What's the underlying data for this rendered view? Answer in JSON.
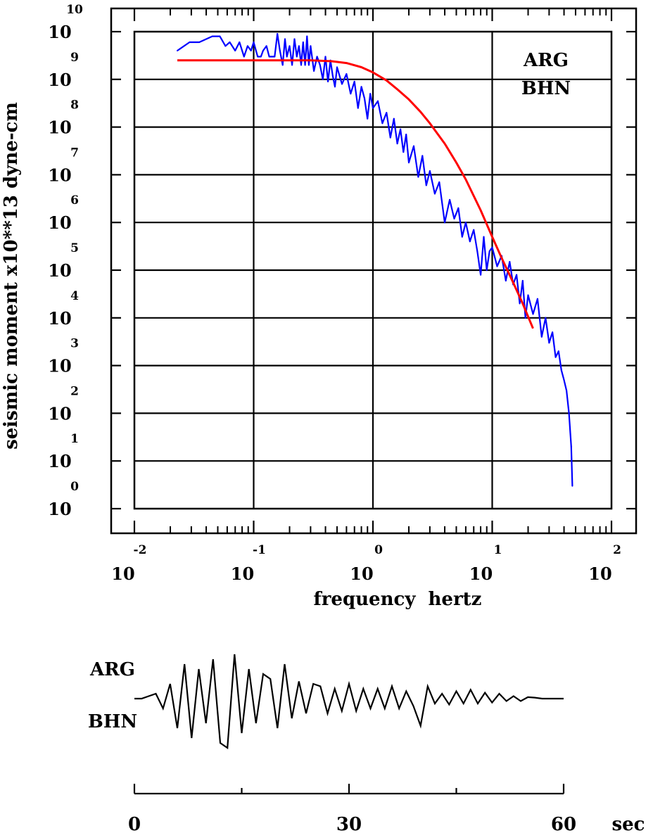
{
  "chart_data": [
    {
      "type": "line",
      "ylabel": "seismic moment x10**13 dyne-cm",
      "xlabel": "frequency  hertz",
      "xscale": "log",
      "yscale": "log",
      "xlim": [
        0.01,
        100
      ],
      "ylim": [
        1,
        10000000000
      ],
      "grid": true,
      "annotations": [
        "ARG",
        "BHN"
      ],
      "x_ticks": [
        {
          "base": "10",
          "exp": "-2"
        },
        {
          "base": "10",
          "exp": "-1"
        },
        {
          "base": "10",
          "exp": "0"
        },
        {
          "base": "10",
          "exp": "1"
        },
        {
          "base": "10",
          "exp": "2"
        }
      ],
      "y_ticks": [
        {
          "base": "10",
          "exp": "0"
        },
        {
          "base": "10",
          "exp": "1"
        },
        {
          "base": "10",
          "exp": "2"
        },
        {
          "base": "10",
          "exp": "3"
        },
        {
          "base": "10",
          "exp": "4"
        },
        {
          "base": "10",
          "exp": "5"
        },
        {
          "base": "10",
          "exp": "6"
        },
        {
          "base": "10",
          "exp": "7"
        },
        {
          "base": "10",
          "exp": "8"
        },
        {
          "base": "10",
          "exp": "9"
        },
        {
          "base": "10",
          "exp": "10"
        }
      ],
      "series": [
        {
          "color": "#0000ff",
          "style": "spectrum",
          "x": [
            0.0229,
            0.029,
            0.035,
            0.045,
            0.052,
            0.058,
            0.063,
            0.07,
            0.076,
            0.083,
            0.089,
            0.095,
            0.1,
            0.108,
            0.115,
            0.12,
            0.128,
            0.135,
            0.142,
            0.15,
            0.158,
            0.166,
            0.175,
            0.183,
            0.19,
            0.2,
            0.21,
            0.22,
            0.23,
            0.24,
            0.25,
            0.26,
            0.27,
            0.28,
            0.29,
            0.3,
            0.32,
            0.34,
            0.36,
            0.38,
            0.4,
            0.42,
            0.44,
            0.46,
            0.48,
            0.5,
            0.55,
            0.6,
            0.65,
            0.7,
            0.75,
            0.8,
            0.85,
            0.9,
            0.95,
            1.0,
            1.1,
            1.2,
            1.3,
            1.4,
            1.5,
            1.6,
            1.7,
            1.8,
            1.9,
            2.0,
            2.2,
            2.4,
            2.6,
            2.8,
            3.0,
            3.3,
            3.6,
            4.0,
            4.4,
            4.8,
            5.2,
            5.6,
            6.0,
            6.5,
            7.0,
            7.5,
            8.0,
            8.5,
            9.0,
            9.5,
            10.0,
            11.0,
            12.0,
            13.0,
            14.0,
            15.0,
            16.0,
            17.0,
            18.0,
            19.0,
            20.0,
            22.0,
            24.0,
            26.0,
            28.0,
            30.0,
            32.0,
            34.0,
            36.0,
            38.0,
            40.0,
            42.0,
            44.0,
            46.0,
            47.0
          ],
          "y": [
            4000000000,
            6000000000,
            6000000000,
            8000000000,
            8000000000,
            5000000000,
            6000000000,
            4000000000,
            6000000000,
            3000000000,
            5000000000,
            4000000000,
            6000000000,
            3000000000,
            3000000000,
            4000000000,
            5000000000,
            3000000000,
            3000000000,
            3000000000,
            9000000000,
            4000000000,
            2000000000,
            7000000000,
            3000000000,
            5000000000,
            2000000000,
            7000000000,
            3000000000,
            5000000000,
            2000000000,
            6000000000,
            2000000000,
            8000000000,
            2000000000,
            5000000000,
            1500000000,
            3000000000,
            2000000000,
            1000000000,
            3000000000,
            900000000,
            2500000000,
            1200000000,
            700000000,
            1800000000,
            800000000,
            1300000000,
            500000000,
            900000000,
            250000000,
            700000000,
            400000000,
            150000000,
            500000000,
            250000000,
            350000000,
            120000000,
            200000000,
            60000000,
            150000000,
            45000000,
            90000000,
            30000000,
            70000000,
            18000000,
            40000000,
            9000000,
            25000000,
            6000000,
            12000000,
            4000000,
            7000000,
            1000000,
            3000000,
            1200000,
            2000000,
            500000,
            1000000,
            400000,
            700000,
            250000,
            80000,
            500000,
            100000,
            250000,
            300000,
            120000,
            200000,
            60000,
            150000,
            50000,
            80000,
            20000,
            60000,
            10000,
            30000,
            12000,
            25000,
            4000,
            10000,
            3000,
            5000,
            1500,
            2000,
            800,
            500,
            300,
            100,
            20,
            3
          ]
        },
        {
          "color": "#ff0000",
          "style": "model",
          "x": [
            0.0229,
            0.03,
            0.05,
            0.08,
            0.12,
            0.2,
            0.3,
            0.45,
            0.6,
            0.8,
            1.0,
            1.3,
            1.6,
            2.0,
            2.5,
            3.0,
            4.0,
            5.0,
            6.0,
            8.0,
            10.0,
            12.0,
            15.0,
            18.0,
            22.0
          ],
          "y": [
            2500000000,
            2500000000,
            2500000000,
            2500000000,
            2500000000,
            2500000000,
            2500000000,
            2400000000,
            2200000000,
            1800000000,
            1400000000,
            950000000,
            620000000,
            380000000,
            210000000,
            120000000,
            45000000,
            18000000,
            8000000,
            1800000,
            500000,
            180000,
            55000,
            20000,
            6000
          ]
        }
      ]
    },
    {
      "type": "line",
      "xlabel": "sec",
      "xlim": [
        0,
        60
      ],
      "x_ticks": [
        "0",
        "30",
        "60"
      ],
      "annotations": [
        "ARG",
        "BHN"
      ],
      "series": [
        {
          "color": "#000000",
          "style": "seismogram",
          "x": [
            0,
            1,
            2,
            3,
            4,
            5,
            6,
            7,
            8,
            9,
            10,
            11,
            12,
            13,
            14,
            15,
            16,
            17,
            18,
            19,
            20,
            21,
            22,
            23,
            24,
            25,
            26,
            27,
            28,
            29,
            30,
            31,
            32,
            33,
            34,
            35,
            36,
            37,
            38,
            39,
            40,
            41,
            42,
            43,
            44,
            45,
            46,
            47,
            48,
            49,
            50,
            51,
            52,
            53,
            54,
            55,
            56,
            57,
            58,
            59,
            60
          ],
          "y": [
            0,
            0,
            0.05,
            0.1,
            -0.2,
            0.3,
            -0.6,
            0.7,
            -0.8,
            0.6,
            -0.5,
            0.8,
            -0.9,
            -1.0,
            0.9,
            -0.7,
            0.6,
            -0.5,
            0.5,
            0.4,
            -0.6,
            0.7,
            -0.4,
            0.35,
            -0.3,
            0.3,
            0.25,
            -0.3,
            0.2,
            -0.25,
            0.3,
            -0.25,
            0.2,
            -0.2,
            0.2,
            -0.2,
            0.25,
            -0.2,
            0.15,
            -0.15,
            -0.55,
            0.25,
            -0.1,
            0.1,
            -0.12,
            0.15,
            -0.1,
            0.18,
            -0.1,
            0.12,
            -0.08,
            0.1,
            -0.05,
            0.05,
            -0.05,
            0.03,
            0.02,
            0,
            0,
            0,
            0
          ]
        }
      ]
    }
  ]
}
